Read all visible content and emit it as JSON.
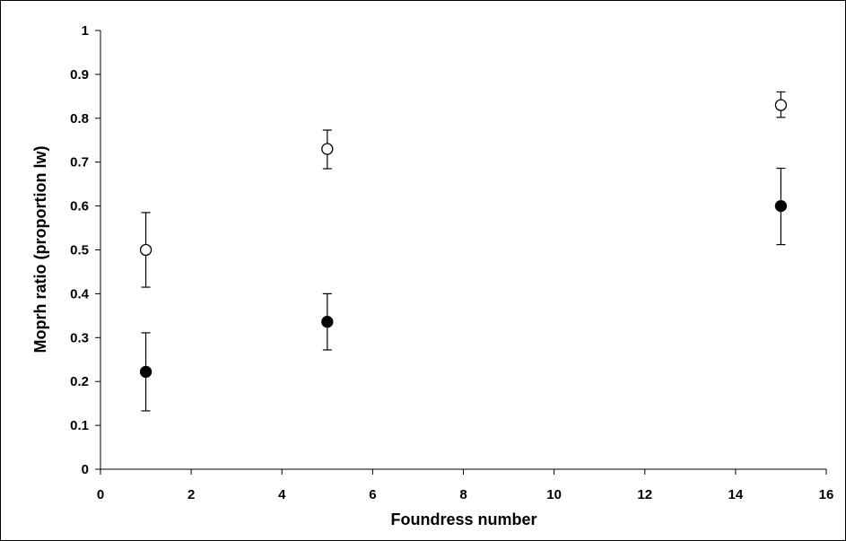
{
  "chart_data": {
    "type": "scatter",
    "title": "",
    "xlabel": "Foundress number",
    "ylabel": "Moprh ratio (proportion lw)",
    "xlim": [
      0,
      16
    ],
    "ylim": [
      0,
      1
    ],
    "x_ticks": [
      0,
      2,
      4,
      6,
      8,
      10,
      12,
      14,
      16
    ],
    "y_ticks": [
      "0",
      "0.1",
      "0.2",
      "0.3",
      "0.4",
      "0.5",
      "0.6",
      "0.7",
      "0.8",
      "0.9",
      "1"
    ],
    "grid": false,
    "legend": "none",
    "series": [
      {
        "marker": "open-circle",
        "color": "#000000",
        "points": [
          {
            "x": 1,
            "y": 0.5,
            "err_low": 0.415,
            "err_high": 0.585
          },
          {
            "x": 5,
            "y": 0.73,
            "err_low": 0.685,
            "err_high": 0.773
          },
          {
            "x": 15,
            "y": 0.83,
            "err_low": 0.802,
            "err_high": 0.86
          }
        ]
      },
      {
        "marker": "filled-circle",
        "color": "#000000",
        "points": [
          {
            "x": 1,
            "y": 0.222,
            "err_low": 0.133,
            "err_high": 0.311
          },
          {
            "x": 5,
            "y": 0.336,
            "err_low": 0.272,
            "err_high": 0.4
          },
          {
            "x": 15,
            "y": 0.6,
            "err_low": 0.512,
            "err_high": 0.686
          }
        ]
      }
    ]
  }
}
